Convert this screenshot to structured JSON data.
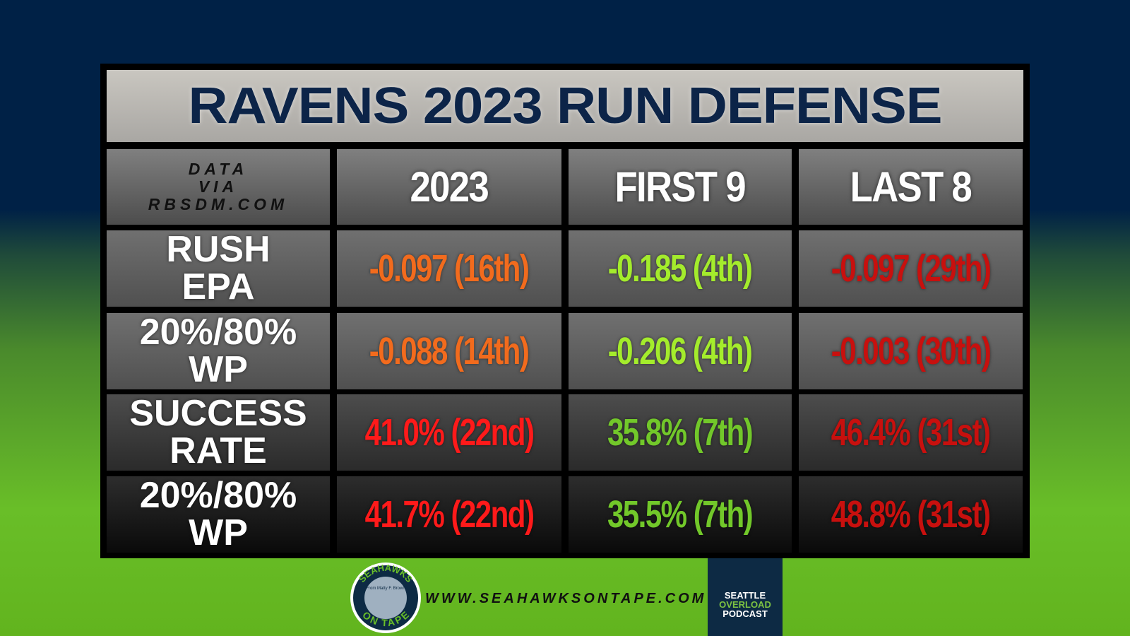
{
  "title": "RAVENS 2023 RUN DEFENSE",
  "table": {
    "source": [
      "DATA",
      "VIA",
      "RBSDM.COM"
    ],
    "columns": [
      "2023",
      "FIRST 9",
      "LAST 8"
    ],
    "rows": [
      {
        "label": [
          "RUSH",
          "EPA"
        ],
        "cells": [
          {
            "text": "-0.097 (16th)",
            "color": "#f26b1d"
          },
          {
            "text": "-0.185 (4th)",
            "color": "#a4ec2c"
          },
          {
            "text": "-0.097 (29th)",
            "color": "#c8100e"
          }
        ]
      },
      {
        "label": [
          "20%/80%",
          "WP"
        ],
        "cells": [
          {
            "text": "-0.088 (14th)",
            "color": "#f26b1d"
          },
          {
            "text": "-0.206 (4th)",
            "color": "#a4ec2c"
          },
          {
            "text": "-0.003 (30th)",
            "color": "#c8100e"
          }
        ]
      },
      {
        "label": [
          "SUCCESS",
          "RATE"
        ],
        "cells": [
          {
            "text": "41.0% (22nd)",
            "color": "#ff1a1a"
          },
          {
            "text": "35.8% (7th)",
            "color": "#72c82a"
          },
          {
            "text": "46.4% (31st)",
            "color": "#c8100e"
          }
        ]
      },
      {
        "label": [
          "20%/80%",
          "WP"
        ],
        "cells": [
          {
            "text": "41.7% (22nd)",
            "color": "#ff1a1a"
          },
          {
            "text": "35.5% (7th)",
            "color": "#72c82a"
          },
          {
            "text": "48.8% (31st)",
            "color": "#c8100e"
          }
        ]
      }
    ]
  },
  "footer": {
    "logo_top": "SEAHAWKS",
    "logo_sub": "From Matty F. Brown",
    "logo_bottom": "ON TAPE",
    "url": "WWW.SEAHAWKSONTAPE.COM",
    "podcast": [
      "SEATTLE",
      "OVERLOAD",
      "PODCAST"
    ]
  }
}
